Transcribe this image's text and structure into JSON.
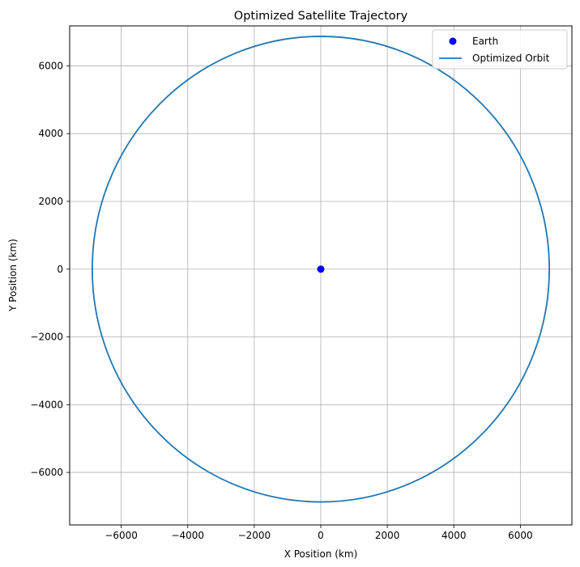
{
  "chart_data": {
    "type": "scatter",
    "title": "Optimized Satellite Trajectory",
    "xlabel": "X Position (km)",
    "ylabel": "Y Position (km)",
    "xlim": [
      -7550,
      7550
    ],
    "ylim": [
      -7550,
      7180
    ],
    "xticks": [
      -6000,
      -4000,
      -2000,
      0,
      2000,
      4000,
      6000
    ],
    "yticks": [
      -6000,
      -4000,
      -2000,
      0,
      2000,
      4000,
      6000
    ],
    "grid": true,
    "legend_position": "top-right",
    "series": [
      {
        "name": "Earth",
        "kind": "point",
        "color": "#0000ff",
        "x": [
          0
        ],
        "y": [
          0
        ]
      },
      {
        "name": "Optimized Orbit",
        "kind": "circle",
        "color": "#1f77b4",
        "center": [
          0,
          0
        ],
        "radius": 6871
      }
    ]
  }
}
